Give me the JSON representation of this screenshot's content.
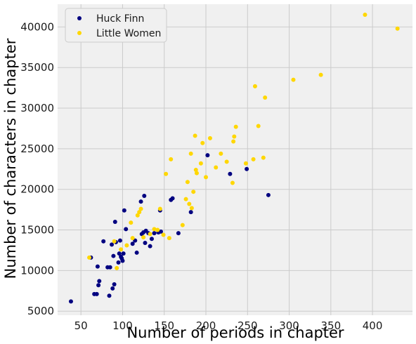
{
  "chart_data": {
    "type": "scatter",
    "title": "",
    "xlabel": "Number of periods in chapter",
    "ylabel": "Number of characters in chapter",
    "xlim": [
      22,
      448
    ],
    "ylim": [
      4500,
      42800
    ],
    "xticks": [
      50,
      100,
      150,
      200,
      250,
      300,
      350,
      400
    ],
    "yticks": [
      5000,
      10000,
      15000,
      20000,
      25000,
      30000,
      35000,
      40000
    ],
    "grid": true,
    "legend_position": "top-left",
    "series": [
      {
        "name": "Huck Finn",
        "color": "#000080",
        "points": [
          [
            38,
            6200
          ],
          [
            62,
            11600
          ],
          [
            66,
            7100
          ],
          [
            69,
            7100
          ],
          [
            70,
            10500
          ],
          [
            71,
            8200
          ],
          [
            72,
            8700
          ],
          [
            77,
            13600
          ],
          [
            82,
            10400
          ],
          [
            84,
            6900
          ],
          [
            85,
            10400
          ],
          [
            87,
            13200
          ],
          [
            88,
            7800
          ],
          [
            89,
            11800
          ],
          [
            90,
            8300
          ],
          [
            91,
            16000
          ],
          [
            92,
            13500
          ],
          [
            95,
            11000
          ],
          [
            96,
            12100
          ],
          [
            97,
            13700
          ],
          [
            98,
            11700
          ],
          [
            99,
            11500
          ],
          [
            100,
            11200
          ],
          [
            101,
            12100
          ],
          [
            102,
            17400
          ],
          [
            104,
            15100
          ],
          [
            112,
            13300
          ],
          [
            115,
            13700
          ],
          [
            117,
            12200
          ],
          [
            122,
            18500
          ],
          [
            123,
            14500
          ],
          [
            125,
            14700
          ],
          [
            126,
            19200
          ],
          [
            127,
            13400
          ],
          [
            128,
            14900
          ],
          [
            131,
            14600
          ],
          [
            133,
            13000
          ],
          [
            135,
            13900
          ],
          [
            138,
            14600
          ],
          [
            143,
            14700
          ],
          [
            145,
            17400
          ],
          [
            146,
            14800
          ],
          [
            158,
            18700
          ],
          [
            160,
            18900
          ],
          [
            167,
            14600
          ],
          [
            182,
            17200
          ],
          [
            202,
            24200
          ],
          [
            229,
            21900
          ],
          [
            249,
            22500
          ],
          [
            275,
            19300
          ]
        ]
      },
      {
        "name": "Little Women",
        "color": "#ffd700",
        "points": [
          [
            60,
            11600
          ],
          [
            90,
            13600
          ],
          [
            93,
            10300
          ],
          [
            98,
            12600
          ],
          [
            105,
            13100
          ],
          [
            110,
            15900
          ],
          [
            112,
            14000
          ],
          [
            118,
            16800
          ],
          [
            120,
            17200
          ],
          [
            122,
            17600
          ],
          [
            125,
            14100
          ],
          [
            133,
            14500
          ],
          [
            138,
            15100
          ],
          [
            142,
            15000
          ],
          [
            145,
            17600
          ],
          [
            149,
            14400
          ],
          [
            152,
            21900
          ],
          [
            156,
            14000
          ],
          [
            158,
            23700
          ],
          [
            172,
            15600
          ],
          [
            176,
            18800
          ],
          [
            178,
            20900
          ],
          [
            180,
            18200
          ],
          [
            182,
            24400
          ],
          [
            183,
            17700
          ],
          [
            185,
            19700
          ],
          [
            187,
            26600
          ],
          [
            188,
            22400
          ],
          [
            189,
            22000
          ],
          [
            194,
            23200
          ],
          [
            196,
            25700
          ],
          [
            200,
            21500
          ],
          [
            205,
            26300
          ],
          [
            212,
            22700
          ],
          [
            218,
            24400
          ],
          [
            225,
            23400
          ],
          [
            232,
            20800
          ],
          [
            233,
            25900
          ],
          [
            234,
            26500
          ],
          [
            236,
            27700
          ],
          [
            248,
            23200
          ],
          [
            257,
            23700
          ],
          [
            259,
            32700
          ],
          [
            263,
            27800
          ],
          [
            269,
            23900
          ],
          [
            271,
            31300
          ],
          [
            305,
            33500
          ],
          [
            338,
            34100
          ],
          [
            391,
            41500
          ],
          [
            430,
            39800
          ]
        ]
      }
    ]
  }
}
